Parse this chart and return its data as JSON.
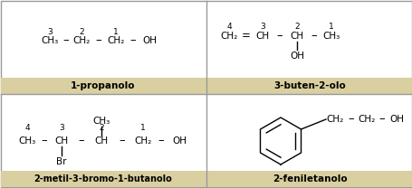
{
  "background_color": "#ffffff",
  "label_bg_color": "#d9cfa0",
  "border_color": "#999999",
  "text_color": "#000000",
  "labels": [
    "1-propanolo",
    "3-buten-2-olo",
    "2-metil-3-bromo-1-butanolo",
    "2-feniletanolo"
  ],
  "label_fontsize": 7.5,
  "structure_fontsize": 7.5,
  "number_fontsize": 6.5
}
